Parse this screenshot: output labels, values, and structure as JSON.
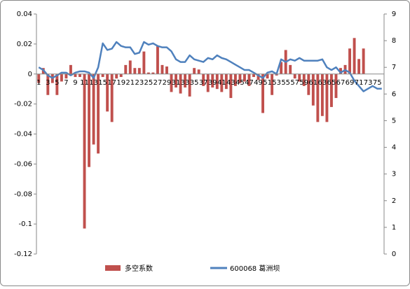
{
  "chart_data": {
    "type": "bar_line",
    "categories": [
      1,
      null,
      3,
      null,
      5,
      null,
      7,
      null,
      9,
      null,
      11,
      null,
      13,
      null,
      15,
      null,
      17,
      null,
      19,
      null,
      21,
      null,
      23,
      null,
      25,
      null,
      27,
      null,
      29,
      null,
      31,
      null,
      33,
      null,
      35,
      null,
      37,
      null,
      39,
      null,
      41,
      null,
      43,
      null,
      45,
      null,
      47,
      null,
      49,
      null,
      51,
      null,
      53,
      null,
      55,
      null,
      57,
      null,
      59,
      null,
      61,
      null,
      63,
      null,
      65,
      null,
      67,
      null,
      69,
      null,
      71,
      null,
      73,
      null,
      75,
      null
    ],
    "series": [
      {
        "name": "多空系数",
        "type": "bar",
        "color": "#c0504d",
        "values": [
          -0.006,
          0.004,
          -0.014,
          -0.006,
          -0.014,
          -0.005,
          -0.003,
          0.006,
          -0.002,
          -0.002,
          -0.103,
          -0.062,
          -0.047,
          -0.053,
          -0.002,
          -0.025,
          -0.032,
          -0.003,
          -0.002,
          0.006,
          0.009,
          0.004,
          0.004,
          0.015,
          0.001,
          0.001,
          0.019,
          0.006,
          0.005,
          -0.012,
          -0.009,
          -0.013,
          -0.009,
          -0.015,
          0.004,
          0.003,
          -0.008,
          -0.012,
          -0.009,
          -0.01,
          -0.012,
          -0.01,
          -0.016,
          -0.008,
          -0.006,
          -0.005,
          -0.008,
          -0.002,
          -0.004,
          -0.026,
          -0.003,
          -0.014,
          -0.001,
          0.008,
          0.016,
          0.006,
          -0.003,
          -0.005,
          -0.008,
          -0.014,
          -0.021,
          -0.032,
          -0.028,
          -0.032,
          -0.022,
          -0.016,
          0.004,
          0.006,
          0.017,
          0.024,
          0.01,
          0.017,
          0,
          0,
          0,
          0
        ]
      },
      {
        "name": "600068 葛洲坝",
        "type": "line",
        "axis": "y2",
        "color": "#4f81bd",
        "values": [
          7.0,
          6.9,
          6.7,
          6.6,
          6.7,
          6.8,
          6.8,
          6.7,
          6.8,
          6.85,
          6.85,
          6.8,
          6.6,
          7.0,
          7.9,
          7.65,
          7.7,
          7.95,
          7.8,
          7.75,
          7.75,
          7.5,
          7.55,
          7.95,
          7.85,
          7.9,
          7.8,
          7.75,
          7.75,
          7.6,
          7.3,
          7.2,
          7.2,
          7.45,
          7.3,
          7.25,
          7.2,
          7.35,
          7.3,
          7.45,
          7.35,
          7.3,
          7.2,
          7.1,
          7.0,
          6.9,
          6.9,
          6.8,
          6.7,
          6.6,
          6.8,
          6.85,
          6.75,
          7.3,
          7.2,
          7.3,
          7.25,
          7.35,
          7.25,
          7.25,
          7.25,
          7.25,
          7.3,
          7.0,
          6.9,
          7.0,
          6.8,
          6.9,
          6.8,
          6.5,
          6.3,
          6.1,
          6.2,
          6.3,
          6.2,
          6.2
        ]
      }
    ],
    "ylim": [
      -0.12,
      0.04
    ],
    "yticks": [
      -0.12,
      -0.1,
      -0.08,
      -0.06,
      -0.04,
      -0.02,
      0,
      0.02,
      0.04
    ],
    "y2lim": [
      0,
      9
    ],
    "y2ticks": [
      0,
      1,
      2,
      3,
      4,
      5,
      6,
      7,
      8,
      9
    ],
    "legend": "bottom"
  }
}
